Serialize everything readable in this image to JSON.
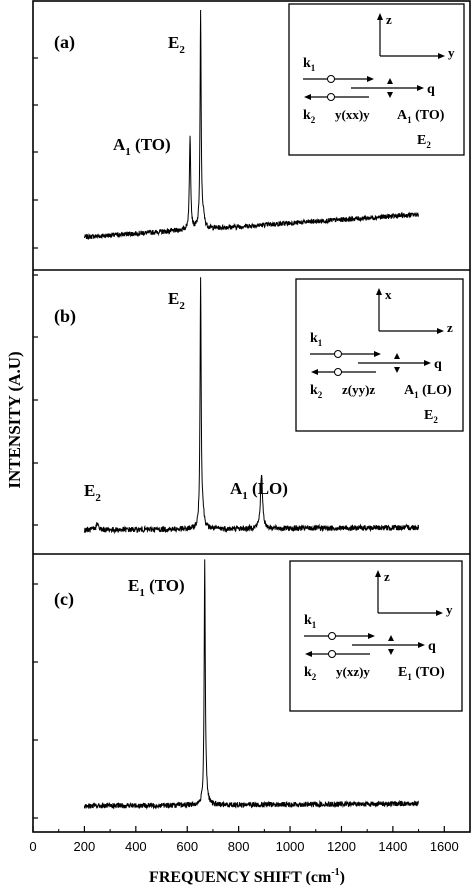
{
  "chart_data": {
    "type": "line",
    "xlabel": "FREQUENCY SHIFT (cm",
    "xlabel_sup": "-1",
    "xlabel_end": ")",
    "ylabel": "INTENSITY (A.U)",
    "xlim": [
      0,
      1700
    ],
    "x_ticks": [
      "0",
      "200",
      "400",
      "600",
      "800",
      "1000",
      "1200",
      "1400",
      "1600"
    ],
    "grid": false,
    "panels": [
      {
        "label": "(a)",
        "x_range": [
          200,
          1500
        ],
        "baseline": [
          [
            200,
            0.08
          ],
          [
            1500,
            0.18
          ]
        ],
        "peaks": [
          {
            "x": 611,
            "height": 0.42,
            "width": 3
          },
          {
            "x": 652,
            "height": 0.95,
            "width": 2.5
          },
          {
            "x": 662,
            "height": 0.05,
            "width": 6
          }
        ],
        "annotations": [
          {
            "main": "E",
            "sub": "2",
            "tail": ""
          },
          {
            "main": "A",
            "sub": "1",
            "tail": " (TO)"
          }
        ],
        "inset": {
          "axis_up": "z",
          "axis_right": "y",
          "k1": "k",
          "k1_sub": "1",
          "k2": "k",
          "k2_sub": "2",
          "q": "q",
          "geometry": "y(xx)y",
          "mode1": "A",
          "mode1_sub": "1",
          "mode1_tail": " (TO)",
          "mode2": "E",
          "mode2_sub": "2"
        }
      },
      {
        "label": "(b)",
        "x_range": [
          200,
          1500
        ],
        "baseline": [
          [
            200,
            0.04
          ],
          [
            1500,
            0.05
          ]
        ],
        "peaks": [
          {
            "x": 250,
            "height": 0.03,
            "width": 4
          },
          {
            "x": 652,
            "height": 0.99,
            "width": 2.5
          },
          {
            "x": 660,
            "height": 0.06,
            "width": 6
          },
          {
            "x": 889,
            "height": 0.21,
            "width": 5
          }
        ],
        "annotations": [
          {
            "main": "E",
            "sub": "2",
            "tail": ""
          },
          {
            "main": "A",
            "sub": "1",
            "tail": " (LO)"
          },
          {
            "main": "E",
            "sub": "2",
            "tail": ""
          }
        ],
        "inset": {
          "axis_up": "x",
          "axis_right": "z",
          "k1": "k",
          "k1_sub": "1",
          "k2": "k",
          "k2_sub": "2",
          "q": "q",
          "geometry": "z(yy)z",
          "mode1": "A",
          "mode1_sub": "1",
          "mode1_tail": " (LO)",
          "mode2": "E",
          "mode2_sub": "2"
        }
      },
      {
        "label": "(c)",
        "x_range": [
          200,
          1500
        ],
        "baseline": [
          [
            200,
            0.05
          ],
          [
            1500,
            0.06
          ]
        ],
        "peaks": [
          {
            "x": 668,
            "height": 0.97,
            "width": 2.5
          },
          {
            "x": 672,
            "height": 0.06,
            "width": 6
          }
        ],
        "annotations": [
          {
            "main": "E",
            "sub": "1",
            "tail": " (TO)"
          }
        ],
        "inset": {
          "axis_up": "z",
          "axis_right": "y",
          "k1": "k",
          "k1_sub": "1",
          "k2": "k",
          "k2_sub": "2",
          "q": "q",
          "geometry": "y(xz)y",
          "mode1": "E",
          "mode1_sub": "1",
          "mode1_tail": " (TO)"
        }
      }
    ]
  }
}
